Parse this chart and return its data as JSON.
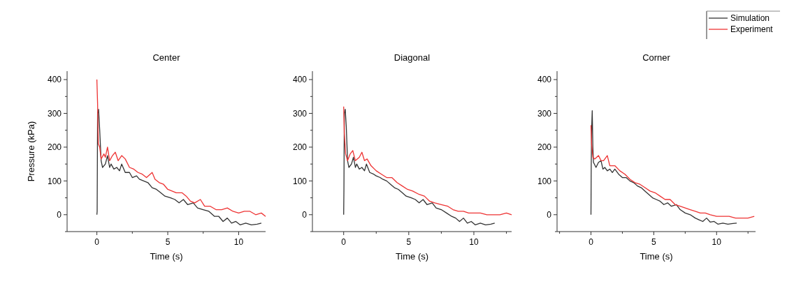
{
  "chart_data": [
    {
      "type": "line",
      "title": "Center",
      "xlabel": "Time (s)",
      "ylabel": "Pressure (kPa)",
      "xlim": [
        -2.1,
        11.9
      ],
      "ylim": [
        -50,
        425
      ],
      "xticks": [
        0,
        {
          "value": 2.5,
          "label": null
        },
        5,
        {
          "value": 7.5,
          "label": null
        },
        10
      ],
      "yticks": [
        {
          "value": -50,
          "label": null
        },
        0,
        {
          "value": 50,
          "label": null
        },
        100,
        {
          "value": 150,
          "label": null
        },
        200,
        {
          "value": 250,
          "label": null
        },
        300,
        {
          "value": 350,
          "label": null
        },
        400
      ],
      "series": [
        {
          "color": "#333333",
          "x": [
            0,
            0.02,
            0.05,
            0.12,
            0.2,
            0.3,
            0.4,
            0.6,
            0.75,
            0.9,
            1.0,
            1.2,
            1.4,
            1.6,
            1.75,
            2.0,
            2.3,
            2.5,
            2.8,
            3.0,
            3.3,
            3.6,
            3.9,
            4.2,
            4.5,
            4.8,
            5.2,
            5.5,
            5.8,
            6.1,
            6.4,
            6.8,
            7.1,
            7.5,
            7.9,
            8.3,
            8.6,
            8.9,
            9.2,
            9.5,
            9.8,
            10.1,
            10.5,
            10.9,
            11.3,
            11.6
          ],
          "values": [
            0,
            10,
            300,
            312,
            250,
            160,
            140,
            150,
            175,
            140,
            150,
            135,
            140,
            130,
            150,
            125,
            125,
            110,
            115,
            105,
            100,
            95,
            80,
            75,
            65,
            55,
            50,
            45,
            35,
            45,
            30,
            35,
            20,
            15,
            10,
            -5,
            -5,
            -20,
            -10,
            -25,
            -20,
            -30,
            -25,
            -30,
            -28,
            -25
          ]
        },
        {
          "color": "#ee3333",
          "x": [
            0,
            0.05,
            0.1,
            0.2,
            0.3,
            0.5,
            0.6,
            0.75,
            0.9,
            1.1,
            1.3,
            1.5,
            1.75,
            2.0,
            2.3,
            2.6,
            2.9,
            3.2,
            3.5,
            3.9,
            4.1,
            4.4,
            4.7,
            5.0,
            5.3,
            5.6,
            6.0,
            6.3,
            6.6,
            6.9,
            7.3,
            7.6,
            8.0,
            8.4,
            8.8,
            9.2,
            9.6,
            10.0,
            10.4,
            10.8,
            11.2,
            11.6,
            11.9
          ],
          "values": [
            400,
            330,
            210,
            200,
            165,
            180,
            170,
            200,
            160,
            175,
            185,
            160,
            175,
            165,
            140,
            135,
            125,
            120,
            110,
            125,
            105,
            95,
            90,
            75,
            70,
            65,
            65,
            55,
            40,
            35,
            45,
            25,
            25,
            15,
            15,
            20,
            10,
            5,
            10,
            10,
            0,
            5,
            -5
          ]
        }
      ]
    },
    {
      "type": "line",
      "title": "Diagonal",
      "xlabel": "Time (s)",
      "xlim": [
        -2.4,
        12.9
      ],
      "ylim": [
        -50,
        425
      ],
      "xticks": [
        0,
        {
          "value": 2.5,
          "label": null
        },
        5,
        {
          "value": 7.5,
          "label": null
        },
        10,
        {
          "value": 12.5,
          "label": null
        }
      ],
      "yticks": [
        {
          "value": -50,
          "label": null
        },
        0,
        {
          "value": 50,
          "label": null
        },
        100,
        {
          "value": 150,
          "label": null
        },
        200,
        {
          "value": 250,
          "label": null
        },
        300,
        {
          "value": 350,
          "label": null
        },
        400
      ],
      "series": [
        {
          "color": "#333333",
          "x": [
            0,
            0.02,
            0.05,
            0.12,
            0.2,
            0.3,
            0.4,
            0.6,
            0.75,
            0.9,
            1.0,
            1.2,
            1.4,
            1.6,
            1.75,
            2.0,
            2.3,
            2.5,
            2.8,
            3.0,
            3.3,
            3.6,
            3.9,
            4.2,
            4.5,
            4.8,
            5.2,
            5.5,
            5.8,
            6.1,
            6.4,
            6.8,
            7.1,
            7.5,
            7.9,
            8.3,
            8.6,
            8.9,
            9.2,
            9.5,
            9.8,
            10.1,
            10.5,
            10.9,
            11.3,
            11.6
          ],
          "values": [
            0,
            75,
            300,
            312,
            260,
            160,
            140,
            150,
            170,
            140,
            150,
            135,
            140,
            130,
            150,
            125,
            120,
            115,
            110,
            105,
            100,
            90,
            80,
            75,
            65,
            55,
            50,
            45,
            35,
            45,
            30,
            35,
            20,
            15,
            5,
            -5,
            -10,
            -20,
            -10,
            -25,
            -20,
            -30,
            -25,
            -30,
            -28,
            -25
          ]
        },
        {
          "color": "#ee3333",
          "x": [
            0,
            0.05,
            0.15,
            0.3,
            0.5,
            0.7,
            0.9,
            1.2,
            1.4,
            1.6,
            1.8,
            2.1,
            2.5,
            2.9,
            3.3,
            3.7,
            4.1,
            4.5,
            4.9,
            5.3,
            5.8,
            6.2,
            6.6,
            7.0,
            7.5,
            8.0,
            8.4,
            8.8,
            9.2,
            9.6,
            10.0,
            10.5,
            11.0,
            11.5,
            12.0,
            12.5,
            12.9
          ],
          "values": [
            320,
            240,
            180,
            160,
            180,
            190,
            160,
            170,
            185,
            160,
            165,
            145,
            130,
            120,
            110,
            110,
            95,
            85,
            75,
            70,
            60,
            55,
            40,
            35,
            30,
            25,
            15,
            10,
            10,
            5,
            5,
            5,
            0,
            0,
            0,
            5,
            0
          ]
        }
      ]
    },
    {
      "type": "line",
      "title": "Corner",
      "xlabel": "Time (s)",
      "xlim": [
        -2.7,
        13.1
      ],
      "ylim": [
        -50,
        425
      ],
      "legend": "top right",
      "xticks": [
        {
          "value": -2.5,
          "label": null
        },
        0,
        {
          "value": 2.5,
          "label": null
        },
        5,
        {
          "value": 7.5,
          "label": null
        },
        10,
        {
          "value": 12.5,
          "label": null
        }
      ],
      "yticks": [
        {
          "value": -50,
          "label": null
        },
        0,
        {
          "value": 50,
          "label": null
        },
        100,
        {
          "value": 150,
          "label": null
        },
        200,
        {
          "value": 250,
          "label": null
        },
        300,
        {
          "value": 350,
          "label": null
        },
        400
      ],
      "series": [
        {
          "name": "Simulation",
          "color": "#333333",
          "x": [
            0,
            0.02,
            0.05,
            0.1,
            0.15,
            0.2,
            0.4,
            0.6,
            0.8,
            0.95,
            1.1,
            1.3,
            1.5,
            1.7,
            1.9,
            2.2,
            2.5,
            2.8,
            3.1,
            3.4,
            3.7,
            4.0,
            4.3,
            4.6,
            4.9,
            5.2,
            5.5,
            5.8,
            6.1,
            6.4,
            6.8,
            7.1,
            7.5,
            7.9,
            8.3,
            8.6,
            8.9,
            9.2,
            9.5,
            9.8,
            10.1,
            10.5,
            10.9,
            11.3,
            11.6
          ],
          "values": [
            0,
            140,
            250,
            308,
            200,
            155,
            140,
            155,
            160,
            135,
            140,
            130,
            135,
            125,
            135,
            120,
            110,
            110,
            100,
            95,
            85,
            80,
            70,
            60,
            50,
            45,
            40,
            30,
            35,
            25,
            30,
            15,
            5,
            0,
            -10,
            -15,
            -20,
            -10,
            -22,
            -20,
            -28,
            -25,
            -28,
            -26,
            -25
          ]
        },
        {
          "name": "Experiment",
          "color": "#ee3333",
          "x": [
            0,
            0.05,
            0.15,
            0.3,
            0.6,
            0.8,
            1.0,
            1.3,
            1.5,
            1.9,
            2.3,
            2.7,
            3.1,
            3.5,
            3.9,
            4.3,
            4.7,
            5.1,
            5.5,
            5.9,
            6.3,
            6.7,
            7.1,
            7.5,
            7.9,
            8.3,
            8.7,
            9.1,
            9.5,
            10.0,
            10.5,
            11.0,
            11.5,
            12.0,
            12.5,
            13.0
          ],
          "values": [
            265,
            210,
            170,
            165,
            175,
            160,
            160,
            175,
            145,
            145,
            130,
            120,
            105,
            95,
            90,
            80,
            70,
            65,
            55,
            45,
            45,
            30,
            25,
            20,
            15,
            10,
            5,
            5,
            0,
            -5,
            -5,
            -5,
            -10,
            -10,
            -10,
            -5
          ]
        }
      ]
    }
  ]
}
